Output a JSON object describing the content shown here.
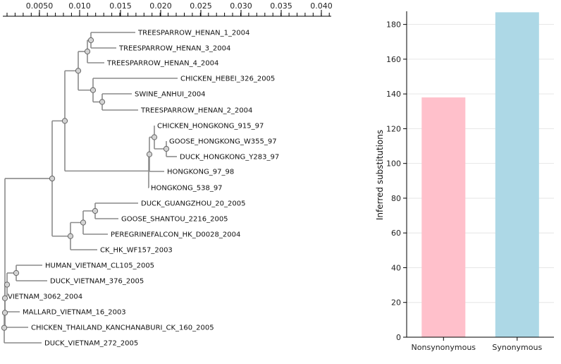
{
  "tree": {
    "scale_ticks": [
      "0.0050",
      "0.010",
      "0.015",
      "0.020",
      "0.025",
      "0.030",
      "0.035",
      "0.040"
    ],
    "leaves": [
      "TREESPARROW_HENAN_1_2004",
      "TREESPARROW_HENAN_3_2004",
      "TREESPARROW_HENAN_4_2004",
      "CHICKEN_HEBEI_326_2005",
      "SWINE_ANHUI_2004",
      "TREESPARROW_HENAN_2_2004",
      "CHICKEN_HONGKONG_915_97",
      "GOOSE_HONGKONG_W355_97",
      "DUCK_HONGKONG_Y283_97",
      "HONGKONG_97_98",
      "HONGKONG_538_97",
      "DUCK_GUANGZHOU_20_2005",
      "GOOSE_SHANTOU_2216_2005",
      "PEREGRINEFALCON_HK_D0028_2004",
      "CK_HK_WF157_2003",
      "HUMAN_VIETNAM_CL105_2005",
      "DUCK_VIETNAM_376_2005",
      "VIETNAM_3062_2004",
      "MALLARD_VIETNAM_16_2003",
      "CHICKEN_THAILAND_KANCHANABURI_CK_160_2005",
      "DUCK_VIETNAM_272_2005"
    ]
  },
  "chart_data": {
    "type": "bar",
    "categories": [
      "Nonsynonymous",
      "Synonymous"
    ],
    "values": [
      138,
      187
    ],
    "colors": [
      "#ffc0cb",
      "#add8e6"
    ],
    "ylabel": "Inferred substitutions",
    "ylim": [
      0,
      190
    ],
    "yticks": [
      0,
      20,
      40,
      60,
      80,
      100,
      120,
      140,
      160,
      180
    ],
    "grid": true
  }
}
